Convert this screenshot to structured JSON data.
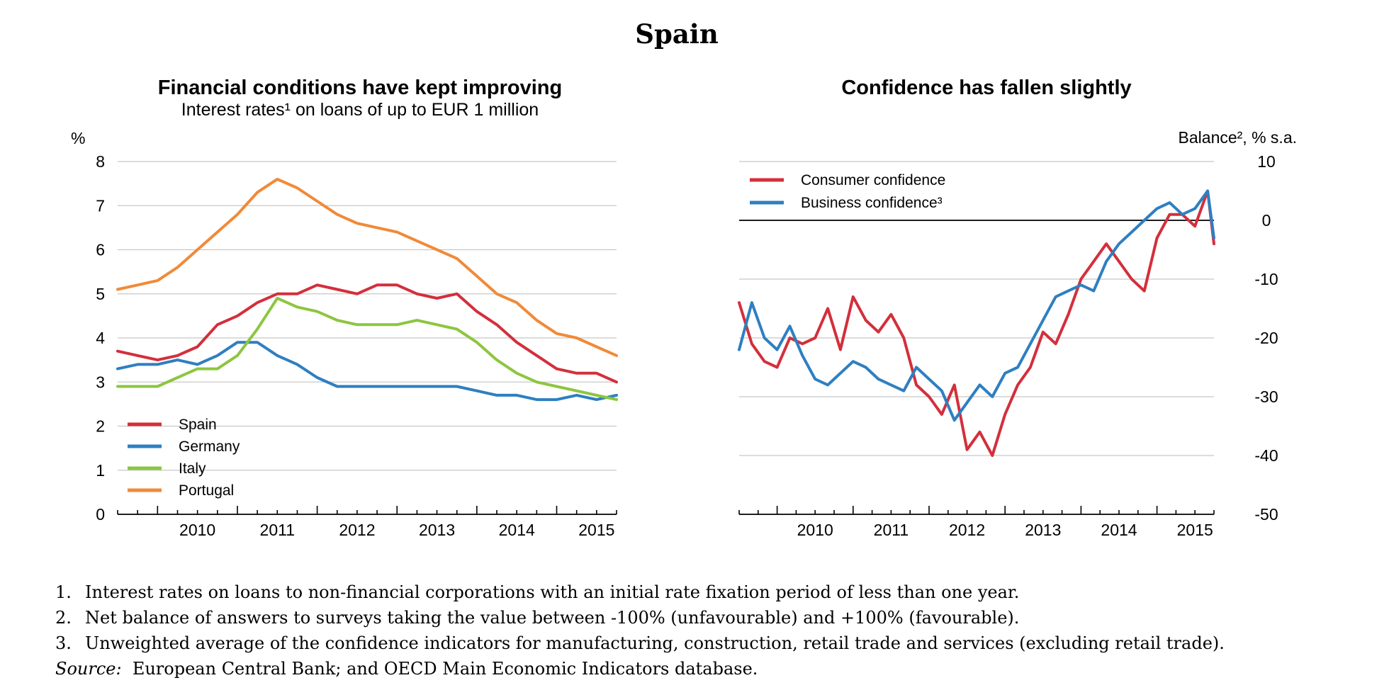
{
  "figure_title": "Spain",
  "notes": [
    {
      "num": "1.",
      "text": "Interest rates on loans to non-financial corporations with an initial rate fixation period of less than one year."
    },
    {
      "num": "2.",
      "text": "Net balance of answers to surveys taking the value between -100% (unfavourable) and +100% (favourable)."
    },
    {
      "num": "3.",
      "text": "Unweighted average of the confidence indicators for manufacturing, construction, retail trade and services (excluding retail trade)."
    }
  ],
  "source": {
    "label": "Source:",
    "text": "European Central Bank; and OECD Main Economic Indicators database."
  },
  "chart_data": [
    {
      "type": "line",
      "title": "Financial conditions have kept improving",
      "subtitle": "Interest rates¹ on loans of up to EUR 1 million",
      "ylabel": "%",
      "ylim": [
        0,
        8
      ],
      "yticks": [
        "0",
        "1",
        "2",
        "3",
        "4",
        "5",
        "6",
        "7",
        "8"
      ],
      "xlim": [
        2009.5,
        2015.75
      ],
      "xticks": [
        "2010",
        "2011",
        "2012",
        "2013",
        "2014",
        "2015"
      ],
      "grid": true,
      "legend_position": "bottom-left",
      "series": [
        {
          "name": "Spain",
          "color": "#d32f3c",
          "x": [
            2009.5,
            2009.75,
            2010.0,
            2010.25,
            2010.5,
            2010.75,
            2011.0,
            2011.25,
            2011.5,
            2011.75,
            2012.0,
            2012.25,
            2012.5,
            2012.75,
            2013.0,
            2013.25,
            2013.5,
            2013.75,
            2014.0,
            2014.25,
            2014.5,
            2014.75,
            2015.0,
            2015.25,
            2015.5,
            2015.75
          ],
          "y": [
            3.7,
            3.6,
            3.5,
            3.6,
            3.8,
            4.3,
            4.5,
            4.8,
            5.0,
            5.0,
            5.2,
            5.1,
            5.0,
            5.2,
            5.2,
            5.0,
            4.9,
            5.0,
            4.6,
            4.3,
            3.9,
            3.6,
            3.3,
            3.2,
            3.2,
            3.0
          ]
        },
        {
          "name": "Germany",
          "color": "#2e7fc1",
          "x": [
            2009.5,
            2009.75,
            2010.0,
            2010.25,
            2010.5,
            2010.75,
            2011.0,
            2011.25,
            2011.5,
            2011.75,
            2012.0,
            2012.25,
            2012.5,
            2012.75,
            2013.0,
            2013.25,
            2013.5,
            2013.75,
            2014.0,
            2014.25,
            2014.5,
            2014.75,
            2015.0,
            2015.25,
            2015.5,
            2015.75
          ],
          "y": [
            3.3,
            3.4,
            3.4,
            3.5,
            3.4,
            3.6,
            3.9,
            3.9,
            3.6,
            3.4,
            3.1,
            2.9,
            2.9,
            2.9,
            2.9,
            2.9,
            2.9,
            2.9,
            2.8,
            2.7,
            2.7,
            2.6,
            2.6,
            2.7,
            2.6,
            2.7
          ]
        },
        {
          "name": "Italy",
          "color": "#8cc63f",
          "x": [
            2009.5,
            2009.75,
            2010.0,
            2010.25,
            2010.5,
            2010.75,
            2011.0,
            2011.25,
            2011.5,
            2011.75,
            2012.0,
            2012.25,
            2012.5,
            2012.75,
            2013.0,
            2013.25,
            2013.5,
            2013.75,
            2014.0,
            2014.25,
            2014.5,
            2014.75,
            2015.0,
            2015.25,
            2015.5,
            2015.75
          ],
          "y": [
            2.9,
            2.9,
            2.9,
            3.1,
            3.3,
            3.3,
            3.6,
            4.2,
            4.9,
            4.7,
            4.6,
            4.4,
            4.3,
            4.3,
            4.3,
            4.4,
            4.3,
            4.2,
            3.9,
            3.5,
            3.2,
            3.0,
            2.9,
            2.8,
            2.7,
            2.6
          ]
        },
        {
          "name": "Portugal",
          "color": "#f08a38",
          "x": [
            2009.5,
            2009.75,
            2010.0,
            2010.25,
            2010.5,
            2010.75,
            2011.0,
            2011.25,
            2011.5,
            2011.75,
            2012.0,
            2012.25,
            2012.5,
            2012.75,
            2013.0,
            2013.25,
            2013.5,
            2013.75,
            2014.0,
            2014.25,
            2014.5,
            2014.75,
            2015.0,
            2015.25,
            2015.5,
            2015.75
          ],
          "y": [
            5.1,
            5.2,
            5.3,
            5.6,
            6.0,
            6.4,
            6.8,
            7.3,
            7.6,
            7.4,
            7.1,
            6.8,
            6.6,
            6.5,
            6.4,
            6.2,
            6.0,
            5.8,
            5.4,
            5.0,
            4.8,
            4.4,
            4.1,
            4.0,
            3.8,
            3.6
          ]
        }
      ]
    },
    {
      "type": "line",
      "title": "Confidence has fallen slightly",
      "ylabel": "Balance², % s.a.",
      "ylim": [
        -50,
        10
      ],
      "yticks": [
        "-50",
        "-40",
        "-30",
        "-20",
        "-10",
        "0",
        "10"
      ],
      "xlim": [
        2009.5,
        2015.75
      ],
      "xticks": [
        "2010",
        "2011",
        "2012",
        "2013",
        "2014",
        "2015"
      ],
      "grid": true,
      "zero_line": true,
      "legend_position": "top-left",
      "series": [
        {
          "name": "Consumer confidence",
          "color": "#d32f3c",
          "x": [
            2009.5,
            2009.667,
            2009.833,
            2010.0,
            2010.167,
            2010.333,
            2010.5,
            2010.667,
            2010.833,
            2011.0,
            2011.167,
            2011.333,
            2011.5,
            2011.667,
            2011.833,
            2012.0,
            2012.167,
            2012.333,
            2012.5,
            2012.667,
            2012.833,
            2013.0,
            2013.167,
            2013.333,
            2013.5,
            2013.667,
            2013.833,
            2014.0,
            2014.167,
            2014.333,
            2014.5,
            2014.667,
            2014.833,
            2015.0,
            2015.167,
            2015.333,
            2015.5,
            2015.667,
            2015.75
          ],
          "y": [
            -14,
            -21,
            -24,
            -25,
            -20,
            -21,
            -20,
            -15,
            -22,
            -13,
            -17,
            -19,
            -16,
            -20,
            -28,
            -30,
            -33,
            -28,
            -39,
            -36,
            -40,
            -33,
            -28,
            -25,
            -19,
            -21,
            -16,
            -10,
            -7,
            -4,
            -7,
            -10,
            -12,
            -3,
            1,
            1,
            -1,
            5,
            -4
          ]
        },
        {
          "name": "Business confidence³",
          "color": "#2e7fc1",
          "x": [
            2009.5,
            2009.667,
            2009.833,
            2010.0,
            2010.167,
            2010.333,
            2010.5,
            2010.667,
            2010.833,
            2011.0,
            2011.167,
            2011.333,
            2011.5,
            2011.667,
            2011.833,
            2012.0,
            2012.167,
            2012.333,
            2012.5,
            2012.667,
            2012.833,
            2013.0,
            2013.167,
            2013.333,
            2013.5,
            2013.667,
            2013.833,
            2014.0,
            2014.167,
            2014.333,
            2014.5,
            2014.667,
            2014.833,
            2015.0,
            2015.167,
            2015.333,
            2015.5,
            2015.667,
            2015.75
          ],
          "y": [
            -22,
            -14,
            -20,
            -22,
            -18,
            -23,
            -27,
            -28,
            -26,
            -24,
            -25,
            -27,
            -28,
            -29,
            -25,
            -27,
            -29,
            -34,
            -31,
            -28,
            -30,
            -26,
            -25,
            -21,
            -17,
            -13,
            -12,
            -11,
            -12,
            -7,
            -4,
            -2,
            0,
            2,
            3,
            1,
            2,
            5,
            -3
          ]
        }
      ]
    }
  ]
}
